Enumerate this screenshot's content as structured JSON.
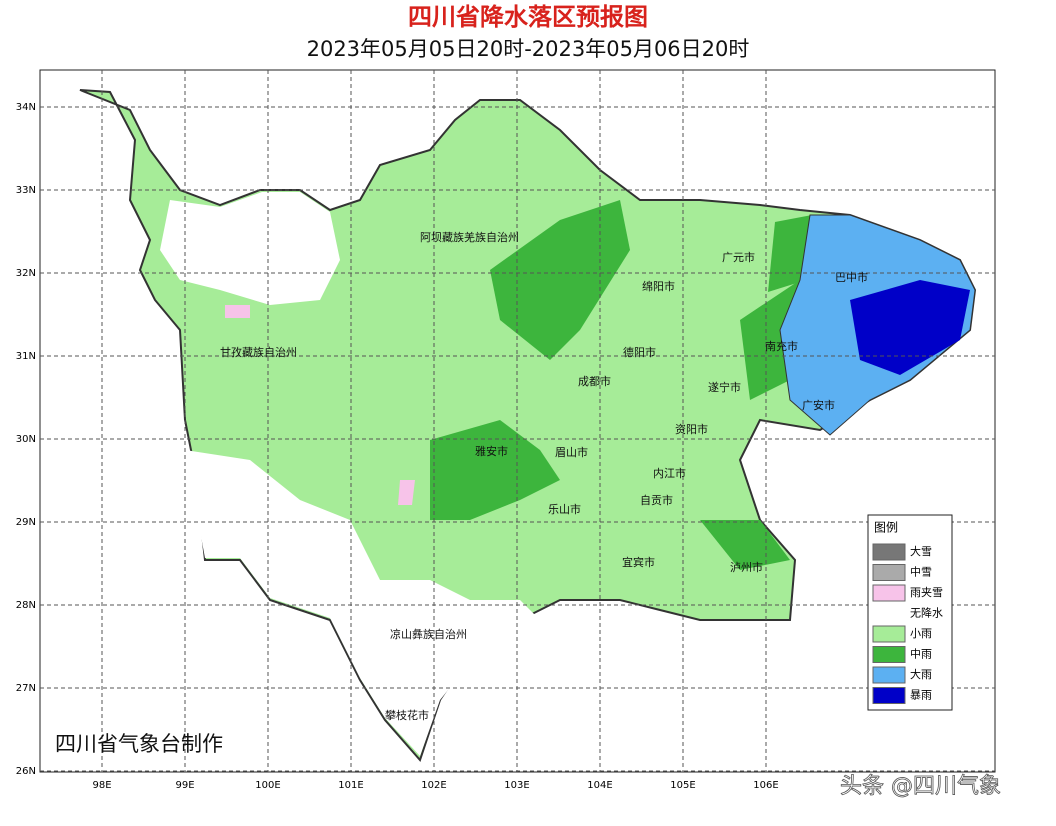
{
  "header": {
    "title": "四川省降水落区预报图",
    "subtitle": "2023年05月05日20时-2023年05月06日20时"
  },
  "map": {
    "lon_ticks": [
      {
        "value": 98,
        "label": "98E"
      },
      {
        "value": 99,
        "label": "99E"
      },
      {
        "value": 100,
        "label": "100E"
      },
      {
        "value": 101,
        "label": "101E"
      },
      {
        "value": 102,
        "label": "102E"
      },
      {
        "value": 103,
        "label": "103E"
      },
      {
        "value": 104,
        "label": "104E"
      },
      {
        "value": 105,
        "label": "105E"
      },
      {
        "value": 106,
        "label": "106E"
      }
    ],
    "lat_ticks": [
      {
        "value": 34,
        "label": "34N"
      },
      {
        "value": 33,
        "label": "33N"
      },
      {
        "value": 32,
        "label": "32N"
      },
      {
        "value": 31,
        "label": "31N"
      },
      {
        "value": 30,
        "label": "30N"
      },
      {
        "value": 29,
        "label": "29N"
      },
      {
        "value": 28,
        "label": "28N"
      },
      {
        "value": 27,
        "label": "27N"
      },
      {
        "value": 26,
        "label": "26N"
      }
    ],
    "places": [
      "阿坝藏族羌族自治州",
      "甘孜藏族自治州",
      "广元市",
      "巴中市",
      "绵阳市",
      "德阳市",
      "南充市",
      "成都市",
      "遂宁市",
      "广安市",
      "资阳市",
      "雅安市",
      "眉山市",
      "内江市",
      "自贡市",
      "乐山市",
      "宜宾市",
      "泸州市",
      "凉山彝族自治州",
      "攀枝花市"
    ]
  },
  "legend": {
    "title": "图例",
    "items": [
      {
        "name": "大雪",
        "color": "#777777"
      },
      {
        "name": "中雪",
        "color": "#aaaaaa"
      },
      {
        "name": "雨夹雪",
        "color": "#f7c3e9"
      },
      {
        "name": "无降水",
        "color": "#ffffff"
      },
      {
        "name": "小雨",
        "color": "#a6ec98"
      },
      {
        "name": "中雨",
        "color": "#3db53d"
      },
      {
        "name": "大雨",
        "color": "#5cb0f2"
      },
      {
        "name": "暴雨",
        "color": "#0000c8"
      }
    ]
  },
  "footer": {
    "credit": "四川省气象台制作",
    "watermark": "头条 @四川气象"
  }
}
